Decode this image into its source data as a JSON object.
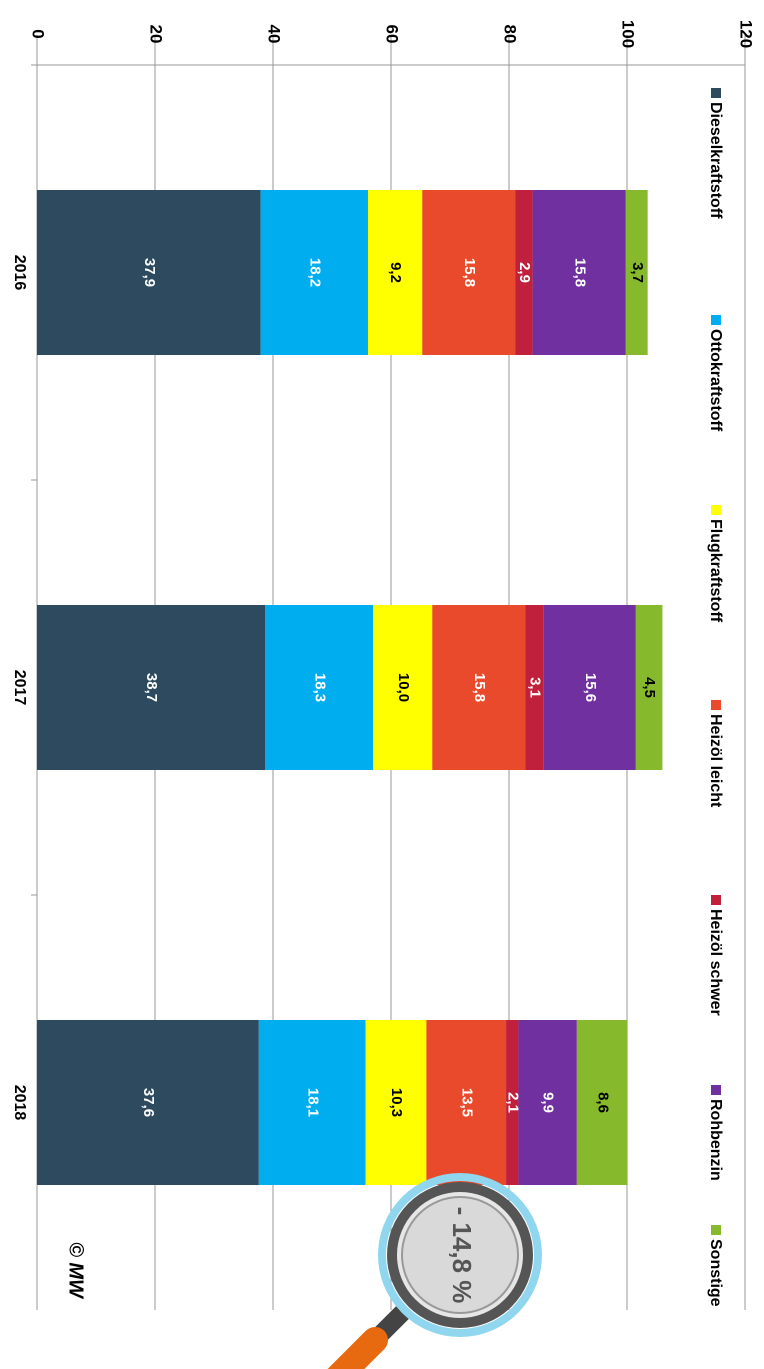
{
  "chart_data": {
    "type": "stacked_bar",
    "categories": [
      "2016",
      "2017",
      "2018"
    ],
    "series": [
      {
        "name": "Dieselkraftstoff",
        "color": "#2d4a5f",
        "values": [
          37.9,
          38.7,
          37.6
        ],
        "value_labels": [
          "37,9",
          "38,7",
          "37,6"
        ]
      },
      {
        "name": "Ottokraftstoff",
        "color": "#00aeef",
        "values": [
          18.2,
          18.3,
          18.1
        ],
        "value_labels": [
          "18,2",
          "18,3",
          "18,1"
        ]
      },
      {
        "name": "Flugkraftstoff",
        "color": "#ffff00",
        "values": [
          9.2,
          10.0,
          10.3
        ],
        "value_labels": [
          "9,2",
          "10,0",
          "10,3"
        ]
      },
      {
        "name": "Heizöl leicht",
        "color": "#e84a2b",
        "values": [
          15.8,
          15.8,
          13.5
        ],
        "value_labels": [
          "15,8",
          "15,8",
          "13,5"
        ]
      },
      {
        "name": "Heizöl schwer",
        "color": "#c0203b",
        "values": [
          2.9,
          3.1,
          2.1
        ],
        "value_labels": [
          "2,9",
          "3,1",
          "2,1"
        ]
      },
      {
        "name": "Rohbenzin",
        "color": "#7030a0",
        "values": [
          15.8,
          15.6,
          9.9
        ],
        "value_labels": [
          "15,8",
          "15,6",
          "9,9"
        ]
      },
      {
        "name": "Sonstige",
        "color": "#86b92b",
        "values": [
          3.7,
          4.5,
          8.6
        ],
        "value_labels": [
          "3,7",
          "4,5",
          "8,6"
        ]
      }
    ],
    "ylim": [
      0,
      120
    ],
    "yticks": [
      0,
      20,
      40,
      60,
      80,
      100,
      120
    ],
    "grid": true,
    "legend": "top",
    "annotation": "- 14,8 %",
    "copyright": "© MW"
  }
}
